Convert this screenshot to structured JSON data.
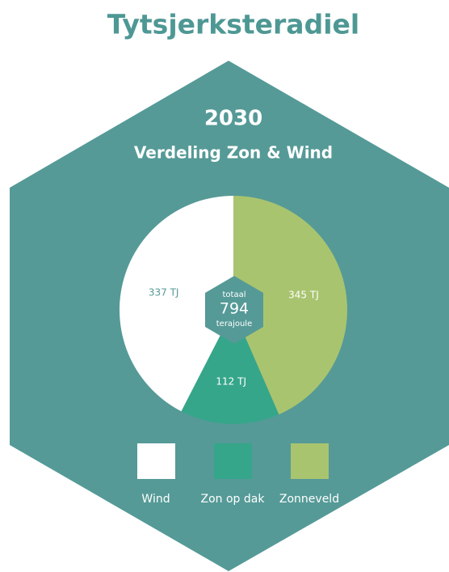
{
  "chart_data": {
    "type": "pie",
    "title": "Tytsjerksteradiel",
    "subtitle": "2030",
    "heading": "Verdeling Zon & Wind",
    "categories": [
      "Wind",
      "Zon op dak",
      "Zonneveld"
    ],
    "values": [
      337,
      112,
      345
    ],
    "value_labels": [
      "337 TJ",
      "112 TJ",
      "345 TJ"
    ],
    "colors": [
      "#ffffff",
      "#35a68a",
      "#a9c46f"
    ],
    "center": {
      "top": "totaal",
      "total": "794",
      "bottom": "terajoule"
    }
  }
}
